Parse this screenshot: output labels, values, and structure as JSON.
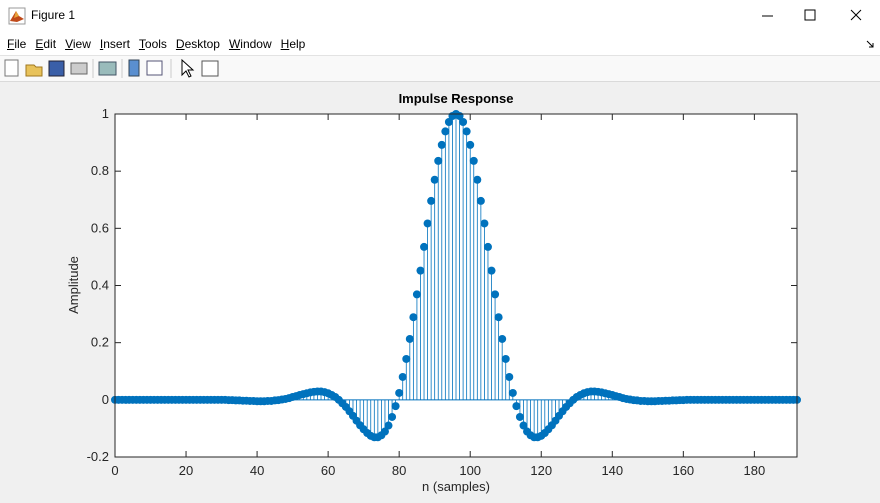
{
  "window": {
    "title": "Figure 1",
    "menu": [
      "File",
      "Edit",
      "View",
      "Insert",
      "Tools",
      "Desktop",
      "Window",
      "Help"
    ]
  },
  "chart_data": {
    "type": "stem",
    "title": "Impulse Response",
    "xlabel": "n (samples)",
    "ylabel": "Amplitude",
    "color": "#0072bd",
    "x": [
      0,
      1,
      2,
      3,
      4,
      5,
      6,
      7,
      8,
      9,
      10,
      11,
      12,
      13,
      14,
      15,
      16,
      17,
      18,
      19,
      20,
      21,
      22,
      23,
      24,
      25,
      26,
      27,
      28,
      29,
      30,
      31,
      32,
      33,
      34,
      35,
      36,
      37,
      38,
      39,
      40,
      41,
      42,
      43,
      44,
      45,
      46,
      47,
      48,
      49,
      50,
      51,
      52,
      53,
      54,
      55,
      56,
      57,
      58,
      59,
      60,
      61,
      62,
      63,
      64,
      65,
      66,
      67,
      68,
      69,
      70,
      71,
      72,
      73,
      74,
      75,
      76,
      77,
      78,
      79,
      80,
      81,
      82,
      83,
      84,
      85,
      86,
      87,
      88,
      89,
      90,
      91,
      92,
      93,
      94,
      95,
      96,
      97,
      98,
      99,
      100,
      101,
      102,
      103,
      104,
      105,
      106,
      107,
      108,
      109,
      110,
      111,
      112,
      113,
      114,
      115,
      116,
      117,
      118,
      119,
      120,
      121,
      122,
      123,
      124,
      125,
      126,
      127,
      128,
      129,
      130,
      131,
      132,
      133,
      134,
      135,
      136,
      137,
      138,
      139,
      140,
      141,
      142,
      143,
      144,
      145,
      146,
      147,
      148,
      149,
      150,
      151,
      152,
      153,
      154,
      155,
      156,
      157,
      158,
      159,
      160,
      161,
      162,
      163,
      164,
      165,
      166,
      167,
      168,
      169,
      170,
      171,
      172,
      173,
      174,
      175,
      176,
      177,
      178,
      179,
      180,
      181,
      182,
      183,
      184,
      185,
      186,
      187,
      188,
      189,
      190,
      191,
      192
    ],
    "values": [
      0,
      0,
      0,
      0,
      0,
      0,
      0,
      0,
      0,
      0,
      0,
      0,
      0,
      0,
      0,
      0,
      0,
      0,
      0,
      0,
      0,
      0,
      0,
      0,
      0,
      0,
      0,
      0,
      0,
      0,
      0,
      0,
      -0.001,
      -0.001,
      -0.002,
      -0.002,
      -0.003,
      -0.003,
      -0.004,
      -0.004,
      -0.005,
      -0.005,
      -0.005,
      -0.004,
      -0.004,
      -0.002,
      -0.001,
      0.001,
      0.003,
      0.006,
      0.01,
      0.013,
      0.017,
      0.02,
      0.023,
      0.026,
      0.028,
      0.029,
      0.029,
      0.027,
      0.023,
      0.017,
      0.01,
      0,
      -0.012,
      -0.025,
      -0.04,
      -0.056,
      -0.073,
      -0.089,
      -0.103,
      -0.116,
      -0.126,
      -0.131,
      -0.131,
      -0.124,
      -0.111,
      -0.09,
      -0.06,
      -0.022,
      0.024,
      0.08,
      0.143,
      0.213,
      0.289,
      0.369,
      0.452,
      0.535,
      0.617,
      0.696,
      0.77,
      0.836,
      0.892,
      0.939,
      0.972,
      0.993,
      1,
      0.993,
      0.972,
      0.939,
      0.892,
      0.836,
      0.77,
      0.696,
      0.617,
      0.535,
      0.452,
      0.369,
      0.289,
      0.213,
      0.143,
      0.08,
      0.024,
      -0.022,
      -0.06,
      -0.09,
      -0.111,
      -0.124,
      -0.131,
      -0.131,
      -0.126,
      -0.116,
      -0.103,
      -0.089,
      -0.073,
      -0.056,
      -0.04,
      -0.025,
      -0.012,
      0,
      0.01,
      0.017,
      0.023,
      0.027,
      0.029,
      0.029,
      0.028,
      0.026,
      0.023,
      0.02,
      0.017,
      0.013,
      0.01,
      0.006,
      0.003,
      0.001,
      -0.001,
      -0.002,
      -0.004,
      -0.004,
      -0.005,
      -0.005,
      -0.005,
      -0.004,
      -0.004,
      -0.003,
      -0.003,
      -0.002,
      -0.002,
      -0.001,
      -0.001,
      0,
      0,
      0,
      0,
      0,
      0,
      0,
      0,
      0,
      0,
      0,
      0,
      0,
      0,
      0,
      0,
      0,
      0,
      0,
      0,
      0,
      0,
      0,
      0,
      0,
      0,
      0,
      0,
      0,
      0,
      0,
      0
    ],
    "xlim": [
      0,
      192
    ],
    "ylim": [
      -0.2,
      1
    ],
    "xticks": [
      0,
      20,
      40,
      60,
      80,
      100,
      120,
      140,
      160,
      180
    ],
    "yticks": [
      -0.2,
      0,
      0.2,
      0.4,
      0.6,
      0.8,
      1
    ]
  }
}
